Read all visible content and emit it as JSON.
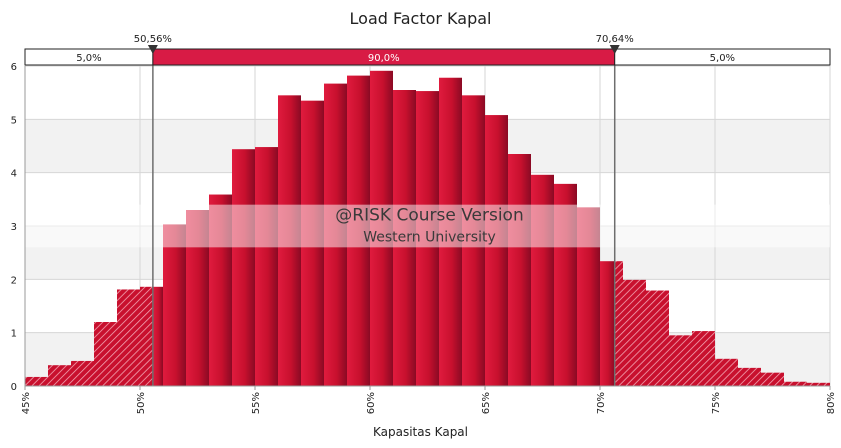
{
  "chart_data": {
    "type": "bar",
    "title": "Load Factor Kapal",
    "xlabel": "Kapasitas Kapal",
    "ylabel": "",
    "xlim": [
      45,
      80
    ],
    "ylim": [
      0,
      6
    ],
    "bin_width": 1,
    "bins": [
      {
        "x0": 45.0,
        "value": 0.17
      },
      {
        "x0": 46.0,
        "value": 0.39
      },
      {
        "x0": 47.0,
        "value": 0.47
      },
      {
        "x0": 48.0,
        "value": 1.2
      },
      {
        "x0": 49.0,
        "value": 1.81
      },
      {
        "x0": 50.0,
        "value": 1.86
      },
      {
        "x0": 51.0,
        "value": 3.03
      },
      {
        "x0": 52.0,
        "value": 3.3
      },
      {
        "x0": 53.0,
        "value": 3.59
      },
      {
        "x0": 54.0,
        "value": 4.44
      },
      {
        "x0": 55.0,
        "value": 4.48
      },
      {
        "x0": 56.0,
        "value": 5.45
      },
      {
        "x0": 57.0,
        "value": 5.35
      },
      {
        "x0": 58.0,
        "value": 5.67
      },
      {
        "x0": 59.0,
        "value": 5.82
      },
      {
        "x0": 60.0,
        "value": 5.91
      },
      {
        "x0": 61.0,
        "value": 5.55
      },
      {
        "x0": 62.0,
        "value": 5.53
      },
      {
        "x0": 63.0,
        "value": 5.78
      },
      {
        "x0": 64.0,
        "value": 5.45
      },
      {
        "x0": 65.0,
        "value": 5.08
      },
      {
        "x0": 66.0,
        "value": 4.35
      },
      {
        "x0": 67.0,
        "value": 3.96
      },
      {
        "x0": 68.0,
        "value": 3.79
      },
      {
        "x0": 69.0,
        "value": 3.35
      },
      {
        "x0": 70.0,
        "value": 2.34
      },
      {
        "x0": 71.0,
        "value": 1.99
      },
      {
        "x0": 72.0,
        "value": 1.79
      },
      {
        "x0": 73.0,
        "value": 0.95
      },
      {
        "x0": 74.0,
        "value": 1.03
      },
      {
        "x0": 75.0,
        "value": 0.51
      },
      {
        "x0": 76.0,
        "value": 0.34
      },
      {
        "x0": 77.0,
        "value": 0.25
      },
      {
        "x0": 78.0,
        "value": 0.08
      },
      {
        "x0": 79.0,
        "value": 0.06
      }
    ],
    "x_ticks": [
      {
        "value": 45,
        "label": "45%"
      },
      {
        "value": 50,
        "label": "50%"
      },
      {
        "value": 55,
        "label": "55%"
      },
      {
        "value": 60,
        "label": "60%"
      },
      {
        "value": 65,
        "label": "65%"
      },
      {
        "value": 70,
        "label": "70%"
      },
      {
        "value": 75,
        "label": "75%"
      },
      {
        "value": 80,
        "label": "80%"
      }
    ],
    "y_ticks": [
      0,
      1,
      2,
      3,
      4,
      5,
      6
    ],
    "grid": true,
    "delimiters": [
      {
        "value": 50.56,
        "label": "50,56%"
      },
      {
        "value": 70.64,
        "label": "70,64%"
      }
    ],
    "probability_bar": [
      {
        "label": "5,0%",
        "region": "left"
      },
      {
        "label": "90,0%",
        "region": "middle"
      },
      {
        "label": "5,0%",
        "region": "right"
      }
    ],
    "watermark": {
      "line1": "@RISK Course Version",
      "line2": "Western University"
    },
    "colors": {
      "bar": "#c8102e",
      "bar_dark": "#8a0a24",
      "prob_middle": "#d81b45",
      "plot_bg": "#f2f2f2"
    }
  }
}
